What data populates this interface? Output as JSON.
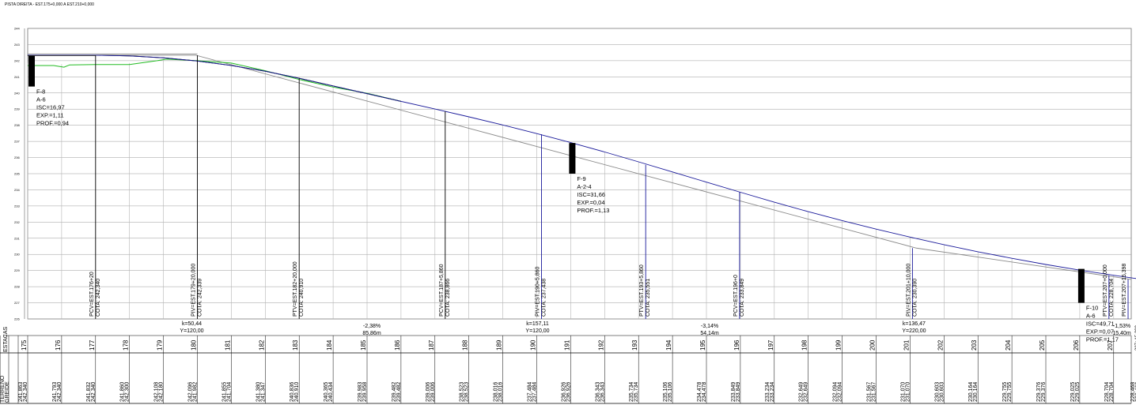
{
  "title": "PISTA DIREITA - EST.175+0,000 A EST.210+0,000",
  "colors": {
    "terrain": "#22bb22",
    "grade": "#1a1a9a",
    "existing": "#8a8a8a",
    "grid": "#b4b4b4",
    "ink": "#000000"
  },
  "y_axis": {
    "min": 226,
    "max": 244,
    "ticks": [
      "244",
      "243",
      "242",
      "241",
      "240",
      "239",
      "238",
      "237",
      "236",
      "235",
      "234",
      "233",
      "232",
      "231",
      "230",
      "229",
      "228",
      "227",
      "226"
    ]
  },
  "stations": [
    "175",
    "176",
    "177",
    "178",
    "179",
    "180",
    "181",
    "182",
    "183",
    "184",
    "185",
    "186",
    "187",
    "188",
    "189",
    "190",
    "191",
    "192",
    "193",
    "194",
    "195",
    "196",
    "197",
    "198",
    "199",
    "200",
    "201",
    "202",
    "203",
    "204",
    "205",
    "206",
    "207"
  ],
  "last_station": "207+15,398",
  "terrain_values": [
    "241,863",
    "241,793",
    "241,832",
    "241,860",
    "242,108",
    "242,096",
    "241,855",
    "241,380",
    "240,836",
    "240,365",
    "239,983",
    "239,482",
    "239,006",
    "238,523",
    "238,016",
    "237,484",
    "236,926",
    "236,343",
    "235,734",
    "235,106",
    "234,478",
    "233,849",
    "233,234",
    "232,649",
    "232,094",
    "231,567",
    "231,070",
    "230,603",
    "230,164",
    "229,755",
    "229,376",
    "229,025",
    "228,704",
    "228,468"
  ],
  "grade_values": [
    "242,340",
    "242,340",
    "242,340",
    "242,300",
    "242,180",
    "241,982",
    "241,704",
    "241,347",
    "240,910",
    "240,434",
    "239,958",
    "239,482",
    "239,006",
    "238,523",
    "238,016",
    "237,484",
    "236,926",
    "236,343",
    "235,734",
    "235,106",
    "234,478",
    "233,849",
    "233,234",
    "232,649",
    "232,094",
    "231,567",
    "231,070",
    "230,603",
    "230,164",
    "229,755",
    "229,376",
    "229,025",
    "228,704",
    "228,468"
  ],
  "row_labels": {
    "stations": "ESTACAS",
    "terrain": "TERRENO",
    "grade": "GREIDE"
  },
  "vertical_points": [
    {
      "label": "PCV=EST.176+20",
      "cota": "COTA: 242,340"
    },
    {
      "label": "PIV=EST.179+20,000",
      "cota": "COTA: 242,339"
    },
    {
      "label": "PTV=EST.182+20,000",
      "cota": "COTA: 240,910"
    },
    {
      "label": "PCV=EST.187+5,860",
      "cota": "COTA: 238,866"
    },
    {
      "label": "PIV=EST.190+5,860",
      "cota": "COTA: 237,438"
    },
    {
      "label": "PTV=EST.193+5,860",
      "cota": "COTA: 235,551"
    },
    {
      "label": "PCV=EST.196+0",
      "cota": "COTA: 233,849"
    },
    {
      "label": "PIV=EST.201+10,000",
      "cota": "COTA: 230,390"
    },
    {
      "label": "PTV=EST.207+0,000",
      "cota": "COTA: 228,704"
    },
    {
      "label": "PIV=EST.207+15,398",
      "cota": ""
    }
  ],
  "curves": [
    {
      "k": "k=50,44",
      "y": "Y=120,00"
    },
    {
      "k": "k=157,11",
      "y": "Y=120,00"
    },
    {
      "k": "k=136,47",
      "y": "Y=220,00"
    }
  ],
  "grades": [
    {
      "slope": "-2,38%",
      "length": "85,86m"
    },
    {
      "slope": "-3,14%",
      "length": "54,14m"
    },
    {
      "slope": "-1,53%",
      "length": "15,40m"
    }
  ],
  "boreholes": [
    {
      "id": "F-8",
      "soil": "A-6",
      "isc": "ISC=16,97",
      "exp": "EXP.=1,11",
      "prof": "PROF.=0,94"
    },
    {
      "id": "F-9",
      "soil": "A-2-4",
      "isc": "ISC=31,66",
      "exp": "EXP.=0,04",
      "prof": "PROF.=1,13"
    },
    {
      "id": "F-10",
      "soil": "A-6",
      "isc": "ISC=49,71",
      "exp": "EXP.=0,07",
      "prof": "PROF.=1,17"
    }
  ]
}
